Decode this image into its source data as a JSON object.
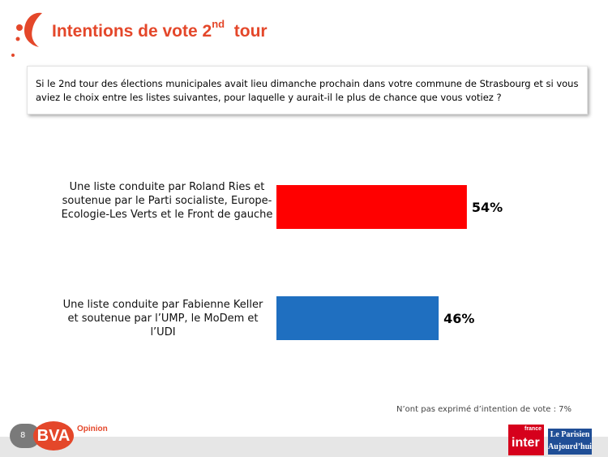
{
  "title": {
    "main": "Intentions de vote 2",
    "sup": "nd",
    "tail": "tour"
  },
  "question": "Si le 2nd tour des élections municipales avait lieu dimanche prochain dans votre commune de Strasbourg et si vous aviez le choix entre les listes suivantes, pour laquelle y aurait-il le plus de chance que vous votiez ?",
  "chart_data": {
    "type": "bar",
    "orientation": "horizontal",
    "categories": [
      "Une liste conduite par Roland Ries et soutenue par le Parti socialiste, Europe-Ecologie-Les Verts et le Front de gauche",
      "Une liste conduite par Fabienne Keller et soutenue par l’UMP, le MoDem et l’UDI"
    ],
    "values": [
      54,
      46
    ],
    "value_labels": [
      "54%",
      "46%"
    ],
    "colors": [
      "#ff0000",
      "#1f6fc0"
    ],
    "xlim": [
      0,
      100
    ],
    "grid": false
  },
  "footnote": "N’ont pas exprimé d’intention de vote : 7%",
  "footer": {
    "page_number": "8",
    "bva_logo": "BVA",
    "bva_tagline": "Opinion",
    "inter_logo_small": "france",
    "inter_logo_big": "inter",
    "parisien_logo_line1": "Le Parisien",
    "parisien_logo_line2": "Aujourd’hui"
  },
  "icons": {
    "decoration": "red-dots-swoosh-icon"
  }
}
